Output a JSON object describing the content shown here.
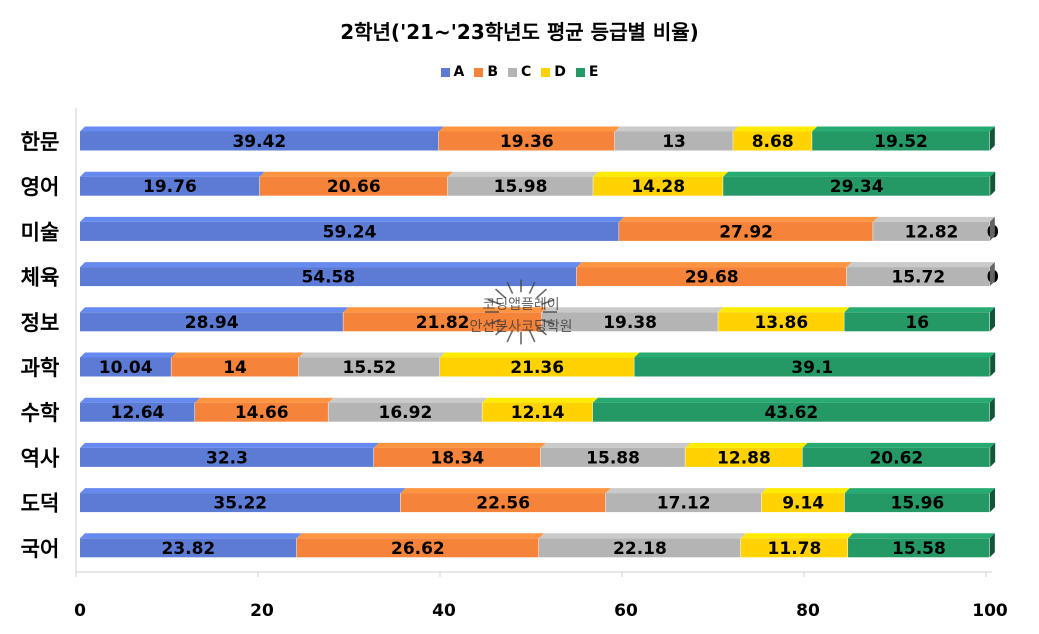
{
  "chart_data": {
    "type": "bar",
    "orientation": "horizontal",
    "stacked": true,
    "title": "2학년('21~'23학년도 평균 등급별 비율)",
    "categories": [
      "한문",
      "영어",
      "미술",
      "체육",
      "정보",
      "과학",
      "수학",
      "역사",
      "도덕",
      "국어"
    ],
    "series": [
      {
        "name": "A",
        "color": "#5B7BD5",
        "values": [
          39.42,
          19.76,
          59.24,
          54.58,
          28.94,
          10.04,
          12.64,
          32.3,
          35.22,
          23.82
        ]
      },
      {
        "name": "B",
        "color": "#F5843A",
        "values": [
          19.36,
          20.66,
          27.92,
          29.68,
          21.82,
          14,
          14.66,
          18.34,
          22.56,
          26.62
        ]
      },
      {
        "name": "C",
        "color": "#B4B4B4",
        "values": [
          13,
          15.98,
          12.82,
          15.72,
          19.38,
          15.52,
          16.92,
          15.88,
          17.12,
          22.18
        ]
      },
      {
        "name": "D",
        "color": "#FFD200",
        "values": [
          8.68,
          14.28,
          0,
          0,
          13.86,
          21.36,
          12.14,
          12.88,
          9.14,
          11.78
        ]
      },
      {
        "name": "E",
        "color": "#249966",
        "values": [
          19.52,
          29.34,
          0,
          0,
          16,
          39.1,
          43.62,
          20.62,
          15.96,
          15.58
        ]
      }
    ],
    "xlim": [
      0,
      100
    ],
    "x_ticks": [
      0,
      20,
      40,
      60,
      80,
      100
    ],
    "grid": false,
    "legend_position": "top"
  },
  "watermark": {
    "line1": "코딩앱플레이",
    "line2": "안산본사코딩학원"
  }
}
